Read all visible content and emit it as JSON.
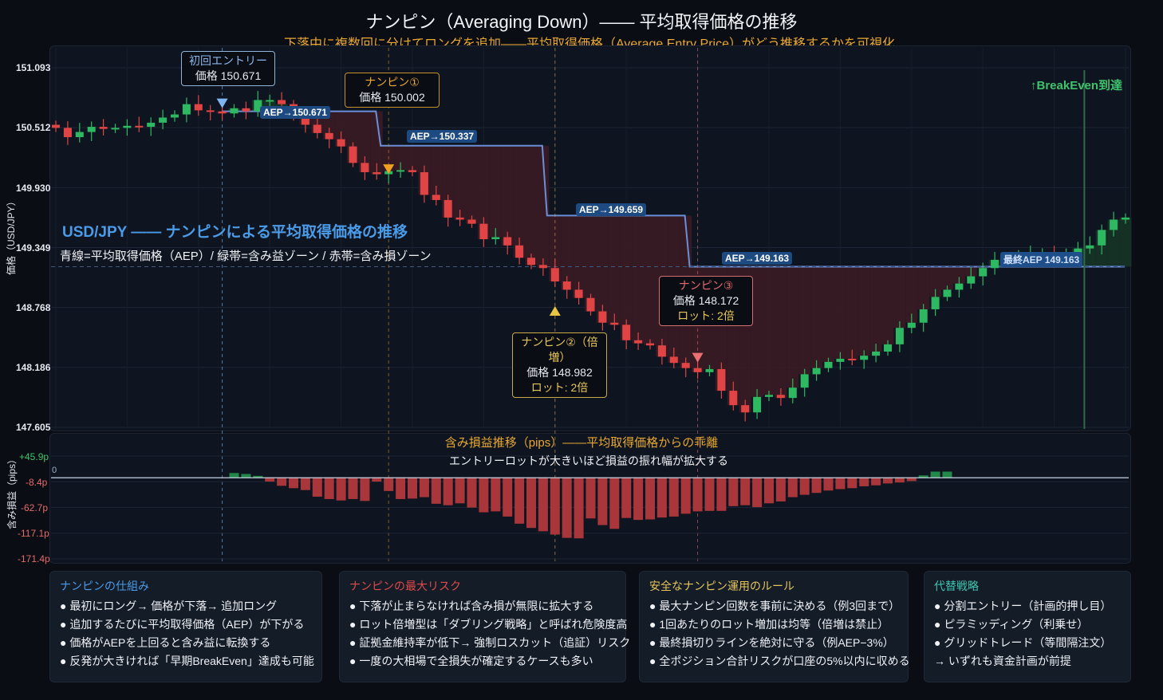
{
  "header": {
    "title": "ナンピン（Averaging Down）—— 平均取得価格の推移",
    "subtitle": "下落中に複数回に分けてロングを追加——平均取得価格（Average Entry Price）がどう推移するかを可視化"
  },
  "colors": {
    "background": "#0a0d14",
    "panel": "#0f1520",
    "bull": "#2fb862",
    "bear": "#e04444",
    "aep_line": "#6a8fd8",
    "loss_zone": "#3a1b24",
    "profit_zone": "#163326",
    "accent_orange": "#e8a832",
    "accent_blue": "#4a9be8",
    "accent_red": "#e56b6b",
    "accent_gold": "#e6c65a",
    "accent_teal": "#3ec4b0"
  },
  "main_chart": {
    "overlay_title": "USD/JPY —— ナンピンによる平均取得価格の推移",
    "overlay_subtitle": "青線=平均取得価格（AEP）/ 緑帯=含み益ゾーン / 赤帯=含み損ゾーン",
    "y_axis_label": "価格（USD/JPY）",
    "y_ticks": [
      "151.093",
      "150.512",
      "149.930",
      "149.349",
      "148.768",
      "148.186",
      "147.605"
    ],
    "callouts": [
      {
        "title": "初回エントリー",
        "price": "価格 150.671",
        "lot": ""
      },
      {
        "title": "ナンピン①",
        "price": "価格 150.002",
        "lot": ""
      },
      {
        "title": "ナンピン②（倍増）",
        "price": "価格 148.982",
        "lot": "ロット: 2倍"
      },
      {
        "title": "ナンピン③",
        "price": "価格 148.172",
        "lot": "ロット: 2倍"
      }
    ],
    "aep_tags": [
      "AEP→150.671",
      "AEP→150.337",
      "AEP→149.659",
      "AEP→149.163"
    ],
    "final_aep_tag": "最終AEP 149.163",
    "breakeven_label": "↑BreakEven到達"
  },
  "pnl_chart": {
    "title": "含み損益推移（pips）——平均取得価格からの乖離",
    "subtitle": "エントリーロットが大きいほど損益の振れ幅が拡大する",
    "y_axis_label": "含み損益（pips）",
    "zero_label": "0",
    "y_ticks": [
      "+45.9p",
      "-8.4p",
      "-62.7p",
      "-117.1p",
      "-171.4p"
    ]
  },
  "chart_data": {
    "type": "candlestick",
    "title": "ナンピン（Averaging Down）—— 平均取得価格の推移",
    "ylabel": "価格（USD/JPY）",
    "ylim": [
      147.605,
      151.093
    ],
    "candles_close": [
      150.51,
      150.42,
      150.47,
      150.52,
      150.5,
      150.51,
      150.53,
      150.52,
      150.56,
      150.61,
      150.64,
      150.74,
      150.68,
      150.67,
      150.65,
      150.7,
      150.67,
      150.78,
      150.78,
      150.74,
      150.62,
      150.54,
      150.46,
      150.4,
      150.33,
      150.17,
      150.08,
      150.06,
      150.09,
      150.1,
      150.08,
      149.86,
      149.81,
      149.64,
      149.62,
      149.58,
      149.43,
      149.45,
      149.37,
      149.25,
      149.18,
      149.15,
      149.02,
      148.94,
      148.86,
      148.73,
      148.62,
      148.6,
      148.45,
      148.42,
      148.4,
      148.29,
      148.23,
      148.18,
      148.14,
      148.17,
      147.96,
      147.82,
      147.75,
      147.9,
      147.92,
      147.89,
      147.99,
      148.12,
      148.18,
      148.24,
      148.27,
      148.26,
      148.3,
      148.34,
      148.41,
      148.57,
      148.62,
      148.75,
      148.87,
      148.94,
      149.0,
      149.07,
      149.15,
      149.23,
      149.26,
      149.26,
      149.28,
      149.29,
      149.28,
      149.3,
      149.34,
      149.37,
      149.52,
      149.62,
      149.64
    ],
    "candles_open_offset": "open = previous close",
    "entries": [
      {
        "label": "初回エントリー",
        "index": 14,
        "price": 150.671
      },
      {
        "label": "ナンピン①",
        "index": 28,
        "price": 150.002
      },
      {
        "label": "ナンピン②（倍増）",
        "index": 42,
        "price": 148.982,
        "lot": "2倍"
      },
      {
        "label": "ナンピン③",
        "index": 54,
        "price": 148.172,
        "lot": "2倍"
      }
    ],
    "aep_steps": [
      {
        "from_index": 14,
        "value": 150.671
      },
      {
        "from_index": 28,
        "value": 150.337
      },
      {
        "from_index": 42,
        "value": 149.659
      },
      {
        "from_index": 54,
        "value": 149.163
      }
    ],
    "breakeven_index": 86,
    "pnl": {
      "type": "bar",
      "ylabel": "含み損益（pips）",
      "ylim": [
        -171.4,
        45.9
      ],
      "start_index": 15,
      "values": [
        10,
        8,
        4,
        -8,
        -17,
        -22,
        -26,
        -40,
        -45,
        -48,
        -45,
        -49,
        -8,
        -28,
        -45,
        -44,
        -41,
        -55,
        -58,
        -54,
        -63,
        -73,
        -71,
        -82,
        -97,
        -106,
        -113,
        -120,
        -127,
        -128,
        -86,
        -100,
        -108,
        -85,
        -89,
        -88,
        -84,
        -82,
        -76,
        -71,
        -70,
        -70,
        -60,
        -58,
        -62,
        -54,
        -50,
        -41,
        -36,
        -32,
        -27,
        -24,
        -22,
        -18,
        -16,
        -12,
        -10,
        -7,
        5,
        13,
        13
      ]
    }
  },
  "cards": [
    {
      "title": "ナンピンの仕組み",
      "items": [
        "● 最初にロング→ 価格が下落→ 追加ロング",
        "● 追加するたびに平均取得価格（AEP）が下がる",
        "● 価格がAEPを上回ると含み益に転換する",
        "● 反発が大きければ「早期BreakEven」達成も可能"
      ]
    },
    {
      "title": "ナンピンの最大リスク",
      "items": [
        "● 下落が止まらなければ含み損が無限に拡大する",
        "● ロット倍増型は「ダブリング戦略」と呼ばれ危険度高",
        "● 証拠金維持率が低下→ 強制ロスカット（追証）リスク",
        "● 一度の大相場で全損失が確定するケースも多い"
      ]
    },
    {
      "title": "安全なナンピン運用のルール",
      "items": [
        "● 最大ナンピン回数を事前に決める（例3回まで）",
        "● 1回あたりのロット増加は均等（倍増は禁止）",
        "● 最終損切りラインを絶対に守る（例AEP−3%）",
        "● 全ポジション合計リスクが口座の5%以内に収める"
      ]
    },
    {
      "title": "代替戦略",
      "items": [
        "● 分割エントリー（計画的押し目）",
        "● ピラミッディング（利乗せ）",
        "● グリッドトレード（等間隔注文）",
        "→ いずれも資金計画が前提"
      ]
    }
  ]
}
